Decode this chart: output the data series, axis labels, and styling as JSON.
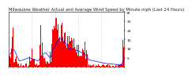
{
  "title": "Milwaukee Weather Actual and Average Wind Speed by Minute mph (Last 24 Hours)",
  "title_fontsize": 3.8,
  "bg_color": "#ffffff",
  "plot_bg_color": "#ffffff",
  "bar_color": "#ff0000",
  "line_color": "#0000ff",
  "grid_color": "#bbbbbb",
  "n_points": 1440,
  "ylim": [
    0,
    30
  ],
  "yticks": [
    5,
    10,
    15,
    20,
    25,
    30
  ],
  "ytick_fontsize": 3.2,
  "xtick_fontsize": 2.8,
  "num_vgrid_lines": 4,
  "spine_color": "#000000"
}
